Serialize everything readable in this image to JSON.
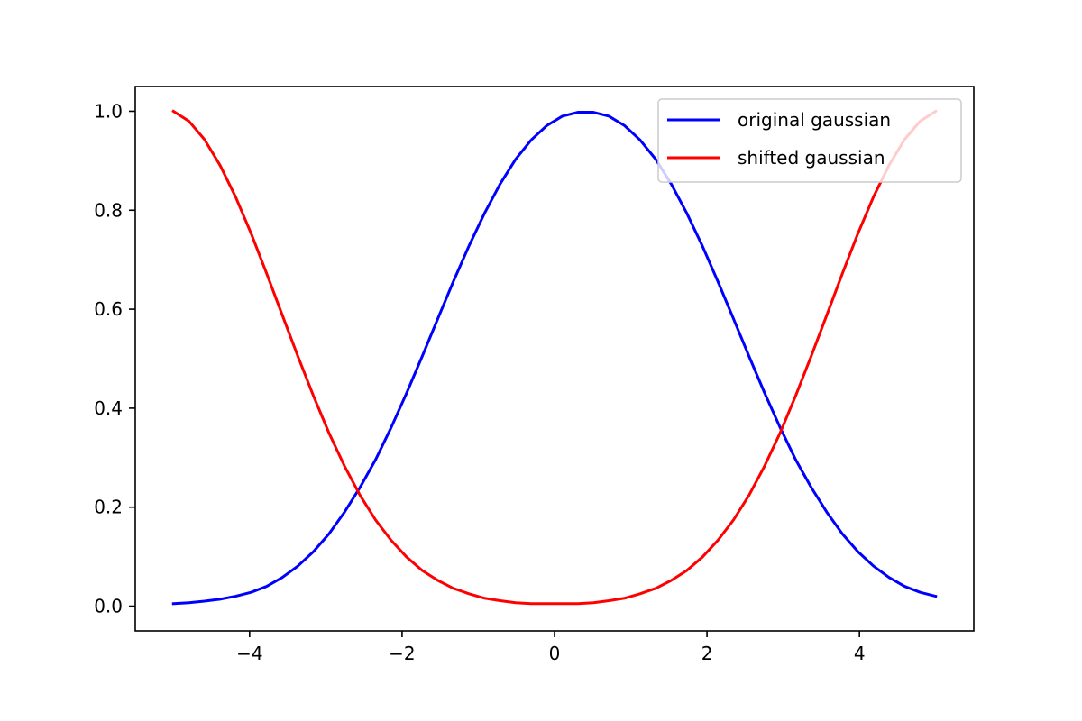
{
  "chart_data": {
    "type": "line",
    "title": "",
    "xlabel": "",
    "ylabel": "",
    "xlim": [
      -5.5,
      5.5
    ],
    "ylim": [
      -0.05,
      1.05
    ],
    "x_ticks": [
      -4,
      -2,
      0,
      2,
      4
    ],
    "x_tick_labels": [
      "−4",
      "−2",
      "0",
      "2",
      "4"
    ],
    "y_ticks": [
      0.0,
      0.2,
      0.4,
      0.6,
      0.8,
      1.0
    ],
    "y_tick_labels": [
      "0.0",
      "0.2",
      "0.4",
      "0.6",
      "0.8",
      "1.0"
    ],
    "grid": false,
    "legend_position": "top-right",
    "x": [
      -5.0,
      -4.796,
      -4.592,
      -4.388,
      -4.184,
      -3.98,
      -3.776,
      -3.571,
      -3.367,
      -3.163,
      -2.959,
      -2.755,
      -2.551,
      -2.347,
      -2.143,
      -1.939,
      -1.735,
      -1.531,
      -1.327,
      -1.122,
      -0.918,
      -0.714,
      -0.51,
      -0.306,
      -0.102,
      0.102,
      0.306,
      0.51,
      0.714,
      0.918,
      1.122,
      1.327,
      1.531,
      1.735,
      1.939,
      2.143,
      2.347,
      2.551,
      2.755,
      2.959,
      3.163,
      3.367,
      3.571,
      3.776,
      3.98,
      4.184,
      4.388,
      4.592,
      4.796,
      5.0
    ],
    "series": [
      {
        "name": "original gaussian",
        "color": "#0000ff",
        "values": [
          0.005,
          0.007,
          0.01,
          0.014,
          0.02,
          0.028,
          0.04,
          0.058,
          0.081,
          0.11,
          0.146,
          0.19,
          0.24,
          0.296,
          0.361,
          0.431,
          0.505,
          0.581,
          0.656,
          0.728,
          0.794,
          0.853,
          0.903,
          0.942,
          0.971,
          0.99,
          0.998,
          0.998,
          0.99,
          0.971,
          0.942,
          0.903,
          0.853,
          0.794,
          0.728,
          0.656,
          0.581,
          0.505,
          0.431,
          0.361,
          0.296,
          0.24,
          0.19,
          0.146,
          0.11,
          0.081,
          0.058,
          0.04,
          0.028,
          0.02
        ]
      },
      {
        "name": "shifted gaussian",
        "color": "#ff0000",
        "values": [
          1.0,
          0.98,
          0.943,
          0.891,
          0.827,
          0.753,
          0.672,
          0.588,
          0.505,
          0.425,
          0.35,
          0.283,
          0.224,
          0.174,
          0.133,
          0.099,
          0.072,
          0.052,
          0.036,
          0.025,
          0.016,
          0.011,
          0.007,
          0.005,
          0.005,
          0.005,
          0.005,
          0.007,
          0.011,
          0.016,
          0.025,
          0.036,
          0.052,
          0.072,
          0.099,
          0.133,
          0.174,
          0.224,
          0.283,
          0.35,
          0.425,
          0.505,
          0.588,
          0.672,
          0.753,
          0.827,
          0.891,
          0.943,
          0.98,
          1.0
        ]
      }
    ]
  }
}
